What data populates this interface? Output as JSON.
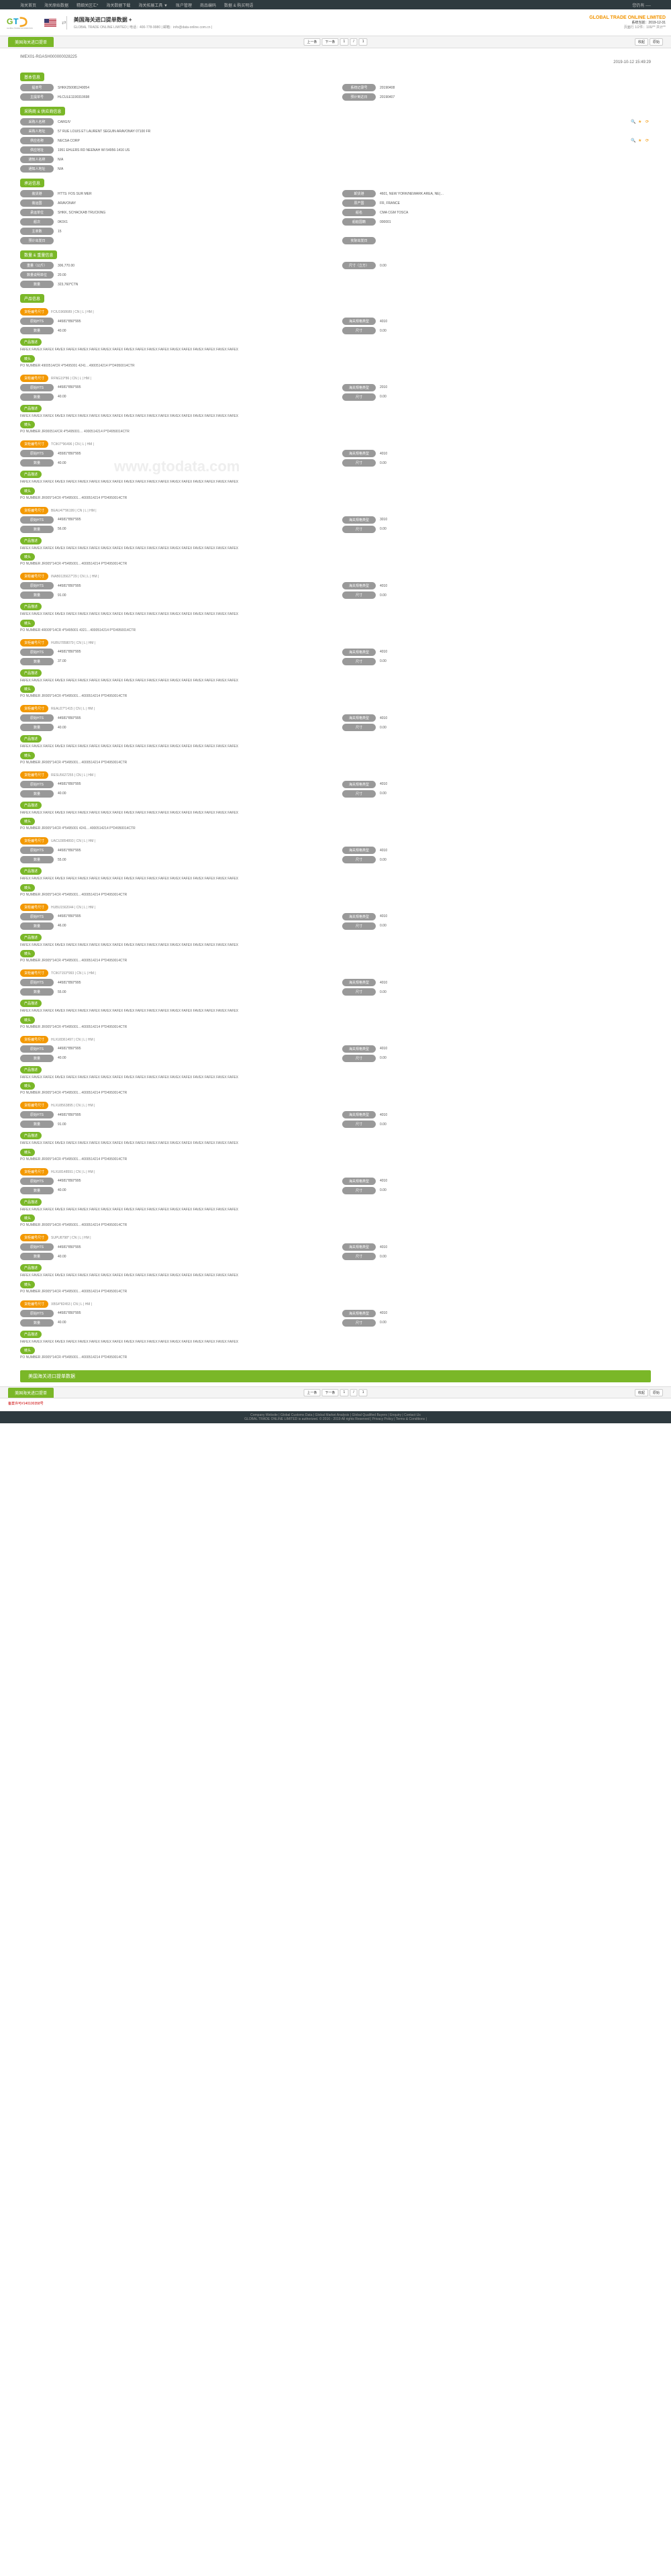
{
  "topNav": {
    "links": [
      "海关首页",
      "海关原始数据",
      "精细关区汇*",
      "海关数据下载",
      "海关拓展工具 ▼",
      "账户管理",
      "商品编码",
      "数据 & 购买明语"
    ],
    "right": "您仍有 ----"
  },
  "header": {
    "title": "美国海关进口提单数据 +",
    "subtitle": "GLOBAL TRADE ONLINE LIMITED | 电话：400-778-9980 | 邮箱：info@data-online.com.cn |",
    "brand": "GLOBAL TRADE ONLINE LIMITED",
    "dateLabel": "系统当前：2019-12-31",
    "stats": "页面行 1/2件：100/**   共计**"
  },
  "toolbar": {
    "tab": "美国海关进口提单",
    "pager": [
      "上一条",
      "下一条",
      "1",
      "/",
      "1"
    ],
    "right": [
      "收起",
      "原始"
    ]
  },
  "record": {
    "header": "IMEX01-RGASH000000028225",
    "date": "2019-10-12 15:49:29"
  },
  "sec1": {
    "title": "基本信息",
    "rows": [
      {
        "l": "提单号",
        "v": "SHKK250081240054",
        "l2": "系统记录号",
        "v2": "20190408"
      },
      {
        "l": "主提单号",
        "v": "HLCULE1190310698",
        "l2": "预计到达日",
        "v2": "20190407"
      }
    ]
  },
  "sec2": {
    "title": "采购商 & 供应商信息",
    "rows": [
      {
        "l": "采购人名称",
        "v": "CARGIV",
        "icons": true
      },
      {
        "l": "采购人地址",
        "v": "57 RUE LOUIS ET LAURENT SEGUIN ARAVONAY 07100 FR"
      },
      {
        "l": "供应名称",
        "v": "NECSA CORP",
        "icons": true
      },
      {
        "l": "供应地址",
        "v": "1951 EHLERS RD NEENAH WI 54956-1416 US"
      },
      {
        "l": "通知人名称",
        "v": "N/A"
      },
      {
        "l": "通知人地址",
        "v": "N/A"
      }
    ]
  },
  "sec3": {
    "title": "承运信息",
    "rows": [
      {
        "l": "装货港",
        "v": "HTTS: FOS SUR MER",
        "l2": "卸货港",
        "v2": "4601, NEW YORK/NEWARK AREA, NE(…"
      },
      {
        "l": "装运国",
        "v": "ARAVONAY",
        "l2": "原产国",
        "v2": "FR, FRANCE"
      },
      {
        "l": "承运单位",
        "v": "SHKK, SCHACKAB TRUCKING",
        "l2": "船名",
        "v2": "CMA CGM TOSCA"
      },
      {
        "l": "船次",
        "v": "0K0X1",
        "l2": "船舶国籍",
        "v2": "000001"
      },
      {
        "l": "主单数",
        "v": "15"
      },
      {
        "l": "预计出发日",
        "v": "",
        "l2": "实际出发日",
        "v2": ""
      }
    ]
  },
  "sec4": {
    "title": "数量 & 重量信息",
    "rows": [
      {
        "l": "重量（公斤）",
        "v": "306,770.00",
        "l2": "尺寸（立方）",
        "v2": "0.00"
      },
      {
        "l": "数量说明单位",
        "v": "20.00"
      },
      {
        "l": "数量",
        "v": "323,760*CTN"
      }
    ]
  },
  "sec5": {
    "title": "产品信息"
  },
  "products": [
    {
      "ts": "FCIU1968689 | CN | L | HM |",
      "code1": "44581*850*995",
      "spec": "4010",
      "qty": "40.00",
      "unit": "0.00",
      "desc": "FAFEX FAVEX FAFEX FAVEX FAFEX FAVEX FAFEX FAVEX FAFEX FAVEX FAFEX FAVEX FAFEX FAVEX FAFEX FAVEX FAFEX FAVEX FAFEX",
      "mark": "PO NUMBER 4900514/CR 4*5495001 4241…4900514214 P*D4950014CTR"
    },
    {
      "ts": "RFNG19*86 | CN | L | HM |",
      "code1": "44581*850*995",
      "spec": "2010",
      "qty": "40.00",
      "unit": "0.00",
      "desc": "FAFEX FAVEX FAFEX FAVEX FAFEX FAVEX FAFEX FAVEX FAFEX FAVEX FAFEX FAVEX FAFEX FAVEX FAFEX FAVEX FAFEX FAVEX FAFEX",
      "mark": "PO NUMBER JR000514/CR 4*5495001… 4000514214 P*D4950014CTR"
    },
    {
      "ts": "TCIKI7*96496 | CN | L | HM |",
      "code1": "45581*850*995",
      "spec": "4010",
      "qty": "40.00",
      "unit": "0.00",
      "desc": "FAFEX FAVEX FAFEX FAVEX FAFEX FAVEX FAFEX FAVEX FAFEX FAVEX FAFEX FAVEX FAFEX FAVEX FAFEX FAVEX FAFEX FAVEX FAFEX",
      "mark": "PO NUMBER JR005*14CR 4*5495001…4000514214 P*D4950014CTR"
    },
    {
      "ts": "BEAU47*96199 | CN | L | HM |",
      "code1": "44581*850*995",
      "spec": "3010",
      "qty": "56.00",
      "unit": "0.00",
      "desc": "FAFEX FAVEX FAFEX FAVEX FAFEX FAVEX FAFEX FAVEX FAFEX FAVEX FAFEX FAVEX FAFEX FAVEX FAFEX FAVEX FAFEX FAVEX FAFEX",
      "mark": "PO NUMBER JR005*14CR 4*5495001…4000514214 P*D4950014CTR"
    },
    {
      "ts": "INAB0135627*29 | CN | L | HM |",
      "code1": "44581*850*995",
      "spec": "4010",
      "qty": "91.00",
      "unit": "0.00",
      "desc": "FAFEX FAVEX FAFEX FAVEX FAFEX FAVEX FAFEX FAVEX FAFEX FAVEX FAFEX FAVEX FAFEX FAVEX FAFEX FAVEX FAFEX FAVEX FAFEX",
      "mark": "PO NUMBER 4R005*14CR 4*5495001 4321…4000514214 P*D4950014CTR"
    },
    {
      "ts": "HUBU7858079 | CN | L | HM |",
      "code1": "44581*850*995",
      "spec": "4010",
      "qty": "37.00",
      "unit": "0.00",
      "desc": "FAFEX FAVEX FAFEX FAVEX FAFEX FAVEX FAFEX FAVEX FAFEX FAVEX FAFEX FAVEX FAFEX FAVEX FAFEX FAVEX FAFEX FAVEX FAFEX",
      "mark": "PO NUMBER JR005*14CR 4*5495001…4000514214 P*D4950014CTR"
    },
    {
      "ts": "REAU27*1415 | CN | L | HM |",
      "code1": "44581*850*995",
      "spec": "4010",
      "qty": "40.00",
      "unit": "0.00",
      "desc": "FAFEX FAVEX FAFEX FAVEX FAFEX FAVEX FAFEX FAVEX FAFEX FAVEX FAFEX FAVEX FAFEX FAVEX FAFEX FAVEX FAFEX FAVEX FAFEX",
      "mark": "PO NUMBER JR005*14CR 4*5495001…4000514214 P*D4950014CTR"
    },
    {
      "ts": "RESU5627255 | CN | L | HM |",
      "code1": "44581*850*995",
      "spec": "4010",
      "qty": "40.00",
      "unit": "0.00",
      "desc": "FAFEX FAVEX FAFEX FAVEX FAFEX FAVEX FAFEX FAVEX FAFEX FAVEX FAFEX FAVEX FAFEX FAVEX FAFEX FAVEX FAFEX FAVEX FAFEX",
      "mark": "PO NUMBER JR005*14CR 4*5495001 4241…4000514214 P*D4950014CTR"
    },
    {
      "ts": "UACU3854893 | CN | L | HM |",
      "code1": "44581*850*995",
      "spec": "4010",
      "qty": "55.00",
      "unit": "0.00",
      "desc": "FAFEX FAVEX FAFEX FAVEX FAFEX FAVEX FAFEX FAVEX FAFEX FAVEX FAFEX FAVEX FAFEX FAVEX FAFEX FAVEX FAFEX FAVEX FAFEX",
      "mark": "PO NUMBER JR005*14CR 4*5495001…4000514214 P*D4950014CTR"
    },
    {
      "ts": "HUBU1562044 | CN | L | HM |",
      "code1": "44581*850*995",
      "spec": "4010",
      "qty": "46.00",
      "unit": "0.00",
      "desc": "FAFEX FAVEX FAFEX FAVEX FAFEX FAVEX FAFEX FAVEX FAFEX FAVEX FAFEX FAVEX FAFEX FAVEX FAFEX FAVEX FAFEX FAVEX FAFEX",
      "mark": "PO NUMBER JR005*14CR 4*5495001…4000514214 P*D4950014CTR"
    },
    {
      "ts": "TCIKI7153*993 | CN | L | HM |",
      "code1": "44581*850*995",
      "spec": "4010",
      "qty": "55.00",
      "unit": "0.00",
      "desc": "FAFEX FAVEX FAFEX FAVEX FAFEX FAVEX FAFEX FAVEX FAFEX FAVEX FAFEX FAVEX FAFEX FAVEX FAFEX FAVEX FAFEX FAVEX FAFEX",
      "mark": "PO NUMBER JR005*14CR 4*5495001…4000514214 P*D4950014CTR"
    },
    {
      "ts": "HLXU8361497 | CN | L | HM |",
      "code1": "44581*850*995",
      "spec": "4010",
      "qty": "40.00",
      "unit": "0.00",
      "desc": "FAFEX FAVEX FAFEX FAVEX FAFEX FAVEX FAFEX FAVEX FAFEX FAVEX FAFEX FAVEX FAFEX FAVEX FAFEX FAVEX FAFEX FAVEX FAFEX",
      "mark": "PO NUMBER JR005*14CR 4*5495001…4000514214 P*D4950014CTR"
    },
    {
      "ts": "HLXU8563895 | CN | L | HM |",
      "code1": "44581*850*995",
      "spec": "4010",
      "qty": "91.00",
      "unit": "0.00",
      "desc": "FAFEX FAVEX FAFEX FAVEX FAFEX FAVEX FAFEX FAVEX FAFEX FAVEX FAFEX FAVEX FAFEX FAVEX FAFEX FAVEX FAFEX FAVEX FAFEX",
      "mark": "PO NUMBER JR005*14CR 4*5495001…4000514214 P*D4950014CTR"
    },
    {
      "ts": "HLXU8148591 | CN | L | HM |",
      "code1": "44581*850*995",
      "spec": "4010",
      "qty": "40.00",
      "unit": "0.00",
      "desc": "FAFEX FAVEX FAFEX FAVEX FAFEX FAVEX FAFEX FAVEX FAFEX FAVEX FAFEX FAVEX FAFEX FAVEX FAFEX FAVEX FAFEX FAVEX FAFEX",
      "mark": "PO NUMBER JR005*14CR 4*5495001…4000514214 P*D4950014CTR"
    },
    {
      "ts": "SUPU8798* | CN | L | HM |",
      "code1": "44581*850*995",
      "spec": "4010",
      "qty": "40.00",
      "unit": "0.00",
      "desc": "FAFEX FAVEX FAFEX FAVEX FAFEX FAVEX FAFEX FAVEX FAFEX FAVEX FAFEX FAVEX FAFEX FAVEX FAFEX FAVEX FAFEX FAVEX FAFEX",
      "mark": "PO NUMBER JR005*14CR 4*5495001…4000514214 P*D4950014CTR"
    },
    {
      "ts": "XBS4*82453 | CN | L | HM |",
      "code1": "44581*850*995",
      "spec": "4010",
      "qty": "40.00",
      "unit": "0.00",
      "desc": "FAFEX FAVEX FAFEX FAVEX FAFEX FAVEX FAFEX FAVEX FAFEX FAVEX FAFEX FAVEX FAFEX FAVEX FAFEX FAVEX FAFEX FAVEX FAFEX",
      "mark": "PO NUMBER JR005*14CR 4*5495001…4000514214 P*D4950014CTR"
    }
  ],
  "labels": {
    "container": "货柜编号尺寸",
    "origin": "原始HTS",
    "spec": "海关规格类型",
    "qty": "数量",
    "unit": "尺寸",
    "descLabel": "产品描述",
    "markLabel": "唛头"
  },
  "bottomBar": "美国海关进口提单数据",
  "footer": "Company Website | Global Customs Data | Global Market Analysis | Global Qualified Buyers | Enquiry | Contact Us",
  "footer2": "GLOBAL TRADE ONLINE LIMITED is authorized. © 2016 - 2019 All rights Reserved | Privacy Policy | Terms & Conditions |",
  "copyleft": "备案许可#140100358号"
}
